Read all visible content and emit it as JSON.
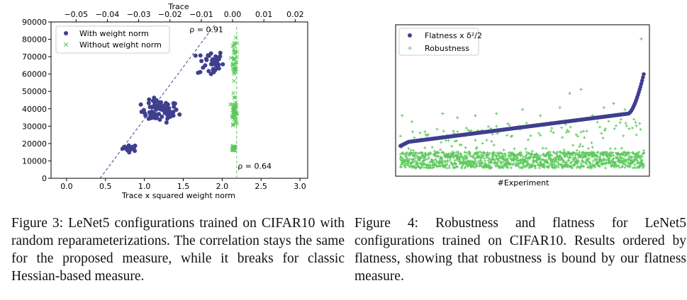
{
  "figures": [
    {
      "caption": "Figure 3: LeNet5 configurations trained on CIFAR10 with random reparameterizations. The correlation stays the same for the proposed measure, while it breaks for classic Hessian-based measure."
    },
    {
      "caption": "Figure 4: Robustness and flatness for LeNet5 configurations trained on CIFAR10. Results ordered by flatness, showing that robustness is bound by our flatness measure."
    }
  ],
  "chart_data": [
    {
      "type": "scatter",
      "title": "",
      "xlabel": "Trace x squared weight norm",
      "x2label": "Trace",
      "ylabel": "",
      "xlim": [
        -0.2,
        3.1
      ],
      "x2lim": [
        -0.058,
        0.024
      ],
      "ylim": [
        0,
        90000
      ],
      "xticks": [
        "0.0",
        "0.5",
        "1.0",
        "1.5",
        "2.0",
        "2.5",
        "3.0"
      ],
      "xtick_values": [
        0,
        0.5,
        1,
        1.5,
        2,
        2.5,
        3
      ],
      "x2ticks": [
        "−0.05",
        "−0.04",
        "−0.03",
        "−0.02",
        "−0.01",
        "0.00",
        "0.01",
        "0.02"
      ],
      "x2tick_values": [
        -0.05,
        -0.04,
        -0.03,
        -0.02,
        -0.01,
        0,
        0.01,
        0.02
      ],
      "yticks": [
        "0",
        "10000",
        "20000",
        "30000",
        "40000",
        "50000",
        "60000",
        "70000",
        "80000",
        "90000"
      ],
      "ytick_values": [
        0,
        10000,
        20000,
        30000,
        40000,
        50000,
        60000,
        70000,
        80000,
        90000
      ],
      "grid": false,
      "legend": "top-left",
      "annotations": [
        {
          "text": "ρ = 0.91",
          "x": 1.58,
          "y": 84000
        },
        {
          "text": "ρ = 0.64",
          "x": 2.2,
          "y": 5500
        }
      ],
      "fits": [
        {
          "series": "With weight norm",
          "x1": 0.43,
          "y1": 0,
          "x2": 1.9,
          "y2": 88000
        },
        {
          "series": "Without weight norm",
          "axis": "x2",
          "x1": 0.0013,
          "y1": 0,
          "x2": 0.0013,
          "y2": 88000
        }
      ],
      "series": [
        {
          "name": "With weight norm",
          "axis": "x",
          "marker": "circle",
          "color": "#3f3f8f",
          "clusters": [
            {
              "x_center": 0.82,
              "x_spread": 0.07,
              "y_center": 17500,
              "y_spread": 1400,
              "count": 25
            },
            {
              "x_center": 1.2,
              "x_spread": 0.17,
              "y_center": 38500,
              "y_spread": 4500,
              "count": 75
            },
            {
              "x_center": 1.85,
              "x_spread": 0.12,
              "y_center": 66500,
              "y_spread": 5500,
              "count": 40
            }
          ]
        },
        {
          "name": "Without weight norm",
          "axis": "x2",
          "marker": "x",
          "color": "#5cc85c",
          "clusters": [
            {
              "x_center": 0.0005,
              "x_spread": 0.0005,
              "y_center": 17500,
              "y_spread": 1500,
              "count": 25
            },
            {
              "x_center": 0.0005,
              "x_spread": 0.0005,
              "y_center": 38500,
              "y_spread": 5000,
              "count": 60
            },
            {
              "x_center": 0.0007,
              "x_spread": 0.0006,
              "y_center": 68000,
              "y_spread": 8000,
              "count": 40
            }
          ]
        }
      ]
    },
    {
      "type": "scatter",
      "title": "",
      "xlabel": "#Experiment",
      "ylabel": "",
      "xlim": [
        -6,
        306
      ],
      "ylim": [
        0,
        75
      ],
      "grid": false,
      "legend": "top-left",
      "series": [
        {
          "name": "Flatness x δ²/2",
          "marker": "circle",
          "color": "#3f3f8f",
          "n": 300,
          "curve": {
            "start": 16.5,
            "linear_end": 31,
            "end": 50.5,
            "upturn_from": 280
          }
        },
        {
          "name": "Robustness",
          "marker": "plus",
          "color": "#5cc85c",
          "n": 300,
          "band": {
            "low": 4,
            "high": 12
          },
          "extremes": [
            {
              "x": 2,
              "y": 30
            },
            {
              "x": 14,
              "y": 27
            },
            {
              "x": 30,
              "y": 22
            },
            {
              "x": 52,
              "y": 31
            },
            {
              "x": 70,
              "y": 29
            },
            {
              "x": 92,
              "y": 30
            },
            {
              "x": 118,
              "y": 31
            },
            {
              "x": 132,
              "y": 26
            },
            {
              "x": 150,
              "y": 33
            },
            {
              "x": 172,
              "y": 30
            },
            {
              "x": 196,
              "y": 34
            },
            {
              "x": 208,
              "y": 41
            },
            {
              "x": 222,
              "y": 43
            },
            {
              "x": 236,
              "y": 30
            },
            {
              "x": 250,
              "y": 34
            },
            {
              "x": 262,
              "y": 36
            },
            {
              "x": 276,
              "y": 33
            },
            {
              "x": 290,
              "y": 25
            },
            {
              "x": 296,
              "y": 68
            }
          ]
        }
      ]
    }
  ]
}
